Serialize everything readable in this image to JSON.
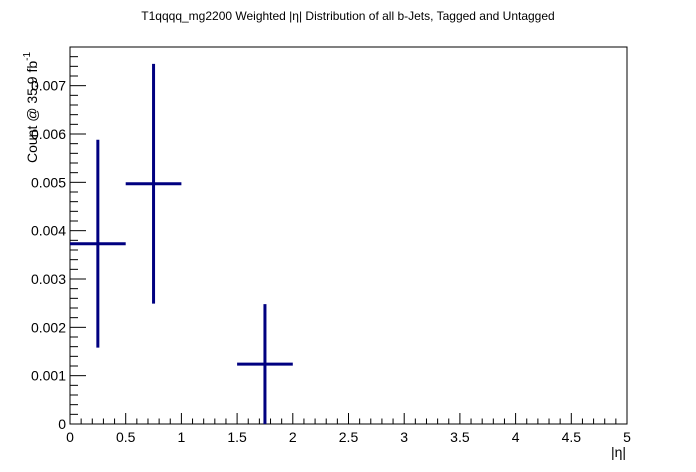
{
  "chart_data": {
    "type": "scatter",
    "style": "histogram-with-error-bars",
    "title": "T1qqqq_mg2200 Weighted |η| Distribution of all b-Jets, Tagged and Untagged",
    "xlabel": "|η|",
    "ylabel": "Count @ 35.9 fb",
    "ylabel_superscript": "-1",
    "xlim": [
      0,
      5
    ],
    "ylim": [
      0,
      0.0078
    ],
    "x_ticks": [
      0,
      0.5,
      1,
      1.5,
      2,
      2.5,
      3,
      3.5,
      4,
      4.5,
      5
    ],
    "x_tick_labels": [
      "0",
      "0.5",
      "1",
      "1.5",
      "2",
      "2.5",
      "3",
      "3.5",
      "4",
      "4.5",
      "5"
    ],
    "y_ticks": [
      0,
      0.001,
      0.002,
      0.003,
      0.004,
      0.005,
      0.006,
      0.007
    ],
    "y_tick_labels": [
      "0",
      "0.001",
      "0.002",
      "0.003",
      "0.004",
      "0.005",
      "0.006",
      "0.007"
    ],
    "grid": false,
    "series_color": "#000080",
    "points": [
      {
        "x_low": 0.0,
        "x_high": 0.5,
        "x": 0.25,
        "y": 0.00373,
        "y_err_low": 0.00215,
        "y_err_high": 0.00215
      },
      {
        "x_low": 0.5,
        "x_high": 1.0,
        "x": 0.75,
        "y": 0.00497,
        "y_err_low": 0.00248,
        "y_err_high": 0.00248
      },
      {
        "x_low": 1.5,
        "x_high": 2.0,
        "x": 1.75,
        "y": 0.00124,
        "y_err_low": 0.00124,
        "y_err_high": 0.00124
      }
    ]
  }
}
